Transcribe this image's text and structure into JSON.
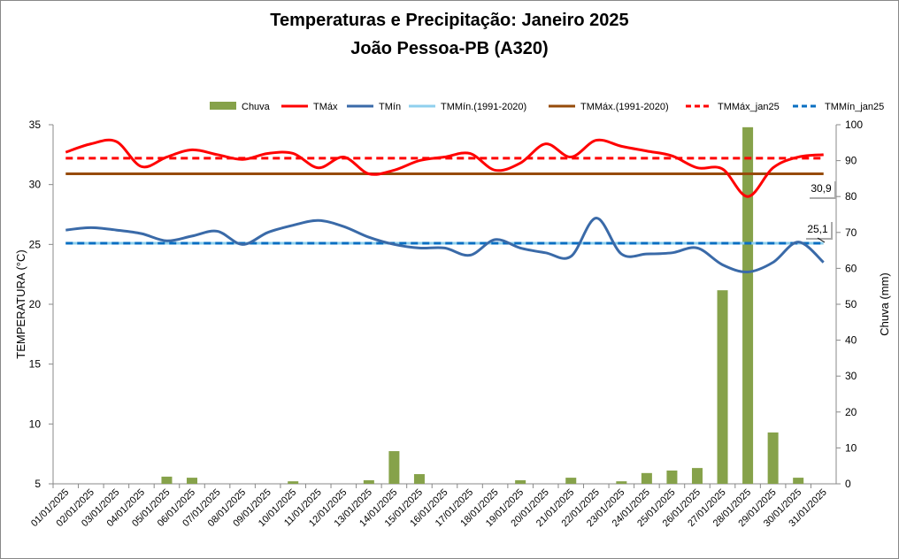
{
  "chart_data": {
    "type": "line",
    "title": "Temperaturas e Precipitação: Janeiro 2025",
    "subtitle": "João Pessoa-PB (A320)",
    "ylabel": "TEMPERATURA (°C)",
    "y2label": "Chuva (mm)",
    "ylim": [
      5,
      35
    ],
    "y2lim": [
      0,
      100
    ],
    "yticks": [
      5,
      10,
      15,
      20,
      25,
      30,
      35
    ],
    "y2ticks": [
      0,
      10,
      20,
      30,
      40,
      50,
      60,
      70,
      80,
      90,
      100
    ],
    "legend_position": "top",
    "categories": [
      "01/01/2025",
      "02/01/2025",
      "03/01/2025",
      "04/01/2025",
      "05/01/2025",
      "06/01/2025",
      "07/01/2025",
      "08/01/2025",
      "09/01/2025",
      "10/01/2025",
      "11/01/2025",
      "12/01/2025",
      "13/01/2025",
      "14/01/2025",
      "15/01/2025",
      "16/01/2025",
      "17/01/2025",
      "18/01/2025",
      "19/01/2025",
      "20/01/2025",
      "21/01/2025",
      "22/01/2025",
      "23/01/2025",
      "24/01/2025",
      "25/01/2025",
      "26/01/2025",
      "27/01/2025",
      "28/01/2025",
      "29/01/2025",
      "30/01/2025",
      "31/01/2025"
    ],
    "series": [
      {
        "name": "Chuva",
        "type": "bar",
        "axis": "right",
        "color": "#86a24a",
        "values": [
          0,
          0,
          0,
          0,
          2.0,
          1.7,
          0,
          0,
          0,
          0.7,
          0,
          0,
          1.0,
          9.1,
          2.7,
          0,
          0,
          0,
          1.0,
          0,
          1.7,
          0,
          0.7,
          3.0,
          3.7,
          4.4,
          53.9,
          99.3,
          14.3,
          1.7,
          0
        ]
      },
      {
        "name": "TMáx",
        "type": "line",
        "axis": "left",
        "color": "#ff0000",
        "values": [
          32.7,
          33.4,
          33.6,
          31.5,
          32.3,
          32.9,
          32.5,
          32.1,
          32.6,
          32.6,
          31.4,
          32.3,
          30.9,
          31.2,
          32.0,
          32.3,
          32.6,
          31.2,
          31.8,
          33.4,
          32.3,
          33.7,
          33.2,
          32.8,
          32.4,
          31.4,
          31.3,
          29.0,
          31.4,
          32.3,
          32.5
        ]
      },
      {
        "name": "TMín",
        "type": "line",
        "axis": "left",
        "color": "#3a6aa8",
        "values": [
          26.2,
          26.4,
          26.2,
          25.9,
          25.3,
          25.7,
          26.1,
          25.0,
          26.0,
          26.6,
          27.0,
          26.5,
          25.6,
          25.0,
          24.7,
          24.7,
          24.1,
          25.4,
          24.7,
          24.3,
          24.0,
          27.2,
          24.2,
          24.2,
          24.3,
          24.7,
          23.3,
          22.7,
          23.5,
          25.2,
          23.5
        ]
      },
      {
        "name": "TMMín.(1991-2020)",
        "type": "constant",
        "axis": "left",
        "color": "#8fd0ee",
        "value": 25.1
      },
      {
        "name": "TMMáx.(1991-2020)",
        "type": "constant",
        "axis": "left",
        "color": "#964b0a",
        "value": 30.9
      },
      {
        "name": "TMMáx_jan25",
        "type": "constant-dashed",
        "axis": "left",
        "color": "#ff0000",
        "value": 32.2
      },
      {
        "name": "TMMín_jan25",
        "type": "constant-dashed",
        "axis": "left",
        "color": "#0a6fc2",
        "value": 25.1
      }
    ],
    "annotations": [
      "30,9",
      "25,1"
    ]
  }
}
